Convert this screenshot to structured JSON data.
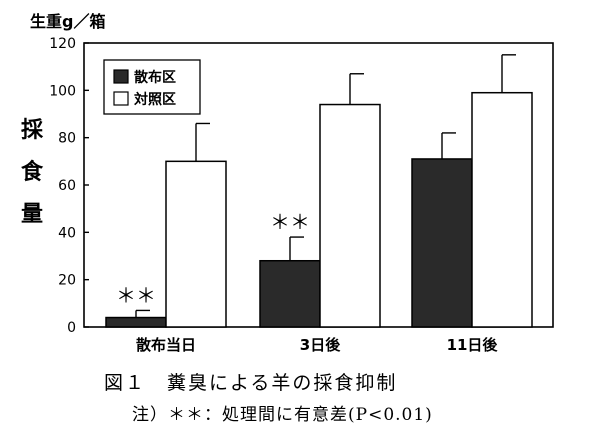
{
  "chart_data": {
    "type": "bar",
    "ylabel_unit": "生重g／箱",
    "ylabel": "採食量",
    "categories": [
      "散布当日",
      "3日後",
      "11日後"
    ],
    "ylim": [
      0,
      120
    ],
    "yticks": [
      0,
      20,
      40,
      60,
      80,
      100,
      120
    ],
    "grid": false,
    "legend_position": "top-left",
    "series": [
      {
        "name": "散布区",
        "color": "#2a2a2a",
        "values": [
          4,
          28,
          71
        ],
        "errors": [
          3,
          10,
          11
        ]
      },
      {
        "name": "対照区",
        "color": "#ffffff",
        "values": [
          70,
          94,
          99
        ],
        "errors": [
          16,
          13,
          16
        ]
      }
    ],
    "annotations": [
      {
        "category_index": 0,
        "series_index": 0,
        "text": "＊＊"
      },
      {
        "category_index": 1,
        "series_index": 0,
        "text": "＊＊"
      }
    ]
  },
  "caption": "図１　糞臭による羊の採食抑制",
  "note": "注）＊＊：処理間に有意差(P<0.01)"
}
